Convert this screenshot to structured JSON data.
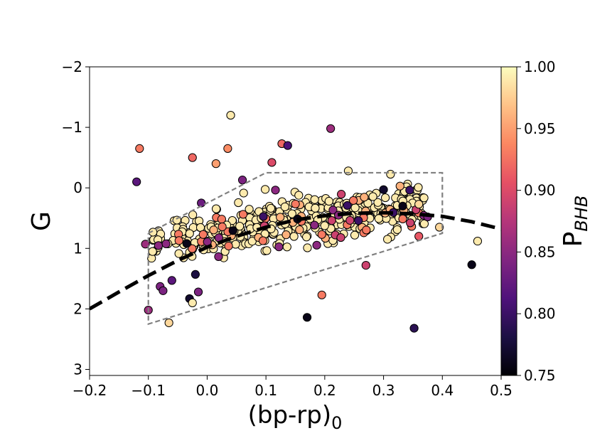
{
  "chart_data": {
    "type": "scatter",
    "xlabel": "(bp-rp)",
    "xlabel_sub": "0",
    "ylabel": "G",
    "xlim": [
      -0.2,
      0.5
    ],
    "ylim": [
      -2,
      3.1
    ],
    "y_inverted": true,
    "x_ticks": [
      -0.2,
      -0.1,
      0.0,
      0.1,
      0.2,
      0.3,
      0.4,
      0.5
    ],
    "x_tick_labels": [
      "−0.2",
      "−0.1",
      "0.0",
      "0.1",
      "0.2",
      "0.3",
      "0.4",
      "0.5"
    ],
    "y_ticks": [
      -2,
      -1,
      0,
      1,
      2,
      3
    ],
    "y_tick_labels": [
      "−2",
      "−1",
      "0",
      "1",
      "2",
      "3"
    ],
    "colorbar": {
      "label": "P",
      "label_sub": "BHB",
      "colormap": "magma",
      "range": [
        0.75,
        1.0
      ],
      "ticks": [
        0.75,
        0.8,
        0.85,
        0.9,
        0.95,
        1.0
      ],
      "tick_labels": [
        "0.75",
        "0.80",
        "0.85",
        "0.90",
        "0.95",
        "1.00"
      ]
    },
    "fiducial_line": {
      "style": "dashed",
      "color": "#000000",
      "x": [
        -0.2,
        -0.15,
        -0.1,
        -0.05,
        0.0,
        0.05,
        0.1,
        0.15,
        0.2,
        0.25,
        0.3,
        0.35,
        0.4,
        0.45,
        0.5
      ],
      "y": [
        2.0,
        1.72,
        1.45,
        1.2,
        0.98,
        0.8,
        0.65,
        0.53,
        0.46,
        0.42,
        0.41,
        0.43,
        0.47,
        0.56,
        0.68
      ]
    },
    "selection_box": {
      "style": "dashed",
      "color": "#808080",
      "x": [
        -0.1,
        0.1,
        0.4,
        0.4,
        -0.1,
        -0.1
      ],
      "y": [
        0.75,
        -0.25,
        -0.25,
        0.75,
        2.25,
        0.75
      ]
    },
    "highlighted_points": [
      {
        "x": -0.12,
        "y": -0.1,
        "p": 0.82
      },
      {
        "x": -0.115,
        "y": -0.65,
        "p": 0.93
      },
      {
        "x": -0.105,
        "y": 0.93,
        "p": 0.86
      },
      {
        "x": -0.1,
        "y": 2.02,
        "p": 0.86
      },
      {
        "x": -0.08,
        "y": 1.63,
        "p": 0.84
      },
      {
        "x": -0.075,
        "y": 1.7,
        "p": 0.84
      },
      {
        "x": -0.065,
        "y": 2.23,
        "p": 0.98
      },
      {
        "x": -0.06,
        "y": 1.53,
        "p": 0.82
      },
      {
        "x": -0.03,
        "y": 1.83,
        "p": 0.77
      },
      {
        "x": -0.025,
        "y": 1.9,
        "p": 0.99
      },
      {
        "x": -0.025,
        "y": -0.5,
        "p": 0.92
      },
      {
        "x": -0.02,
        "y": 1.43,
        "p": 0.78
      },
      {
        "x": -0.015,
        "y": 1.72,
        "p": 0.84
      },
      {
        "x": -0.01,
        "y": 0.25,
        "p": 0.83
      },
      {
        "x": 0.015,
        "y": -0.4,
        "p": 0.95
      },
      {
        "x": 0.035,
        "y": -0.65,
        "p": 0.94
      },
      {
        "x": 0.04,
        "y": -1.2,
        "p": 0.99
      },
      {
        "x": 0.06,
        "y": -0.13,
        "p": 0.84
      },
      {
        "x": 0.11,
        "y": -0.42,
        "p": 0.9
      },
      {
        "x": 0.127,
        "y": -0.73,
        "p": 0.92
      },
      {
        "x": 0.137,
        "y": -0.7,
        "p": 0.81
      },
      {
        "x": 0.17,
        "y": 2.14,
        "p": 0.76
      },
      {
        "x": 0.195,
        "y": 1.77,
        "p": 0.93
      },
      {
        "x": 0.21,
        "y": -0.98,
        "p": 0.86
      },
      {
        "x": 0.24,
        "y": -0.28,
        "p": 0.99
      },
      {
        "x": 0.27,
        "y": 1.28,
        "p": 0.89
      },
      {
        "x": 0.3,
        "y": 0.03,
        "p": 0.77
      },
      {
        "x": 0.36,
        "y": 0.8,
        "p": 0.91
      },
      {
        "x": 0.352,
        "y": 2.32,
        "p": 0.79
      },
      {
        "x": 0.45,
        "y": 1.27,
        "p": 0.76
      },
      {
        "x": 0.46,
        "y": 0.88,
        "p": 0.99
      },
      {
        "x": 0.395,
        "y": 0.65,
        "p": 0.98
      },
      {
        "x": 0.375,
        "y": 0.48,
        "p": 0.84
      },
      {
        "x": 0.36,
        "y": 0.27,
        "p": 0.98
      }
    ],
    "dense_cloud": {
      "description_count": 460,
      "x_range": [
        -0.1,
        0.37
      ],
      "center_line_y": "follows selection band",
      "dominant_p": 0.99
    }
  }
}
